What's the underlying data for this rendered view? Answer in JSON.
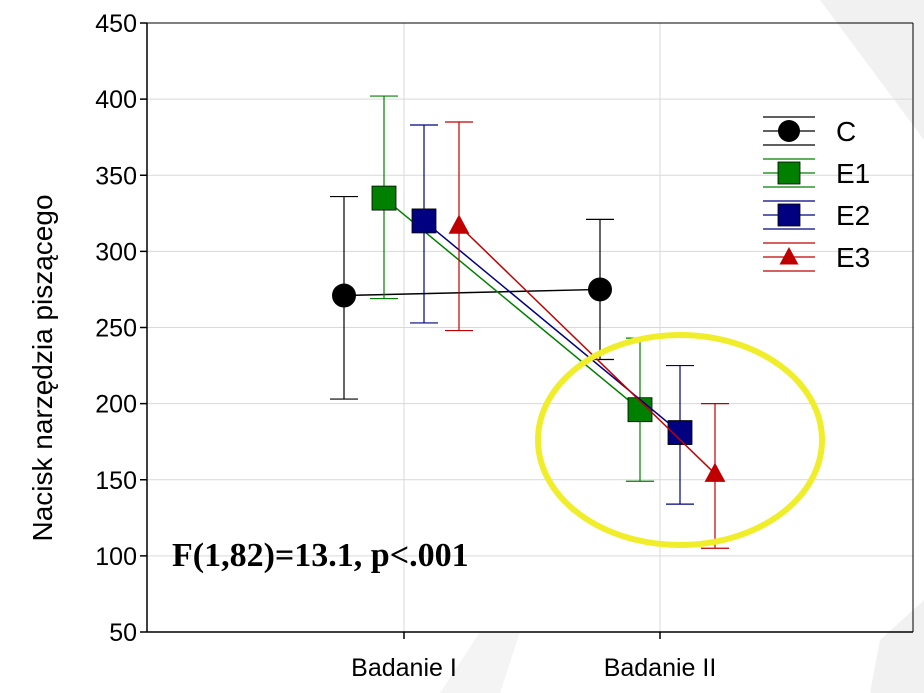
{
  "chart_data": {
    "type": "line",
    "title": "",
    "xlabel": "",
    "ylabel": "Nacisk narzędzia piszącego",
    "categories": [
      "Badanie I",
      "Badanie II"
    ],
    "ylim": [
      50,
      450
    ],
    "yticks": [
      50,
      100,
      150,
      200,
      250,
      300,
      350,
      400,
      450
    ],
    "grid": true,
    "legend_position": "top-right",
    "series": [
      {
        "name": "C",
        "marker": "circle",
        "color": "#000000",
        "values": [
          271,
          275
        ],
        "lower": [
          203,
          229
        ],
        "upper": [
          336,
          321
        ]
      },
      {
        "name": "E1",
        "marker": "square",
        "color": "#008000",
        "values": [
          335,
          196
        ],
        "lower": [
          269,
          149
        ],
        "upper": [
          402,
          243
        ]
      },
      {
        "name": "E2",
        "marker": "square",
        "color": "#000080",
        "values": [
          320,
          181
        ],
        "lower": [
          253,
          134
        ],
        "upper": [
          383,
          225
        ]
      },
      {
        "name": "E3",
        "marker": "triangle",
        "color": "#c00000",
        "values": [
          317,
          154
        ],
        "lower": [
          248,
          105
        ],
        "upper": [
          385,
          200
        ]
      }
    ],
    "annotation": "F(1,82)=13.1, p<.001",
    "highlight_color": "#f0ee2a"
  }
}
